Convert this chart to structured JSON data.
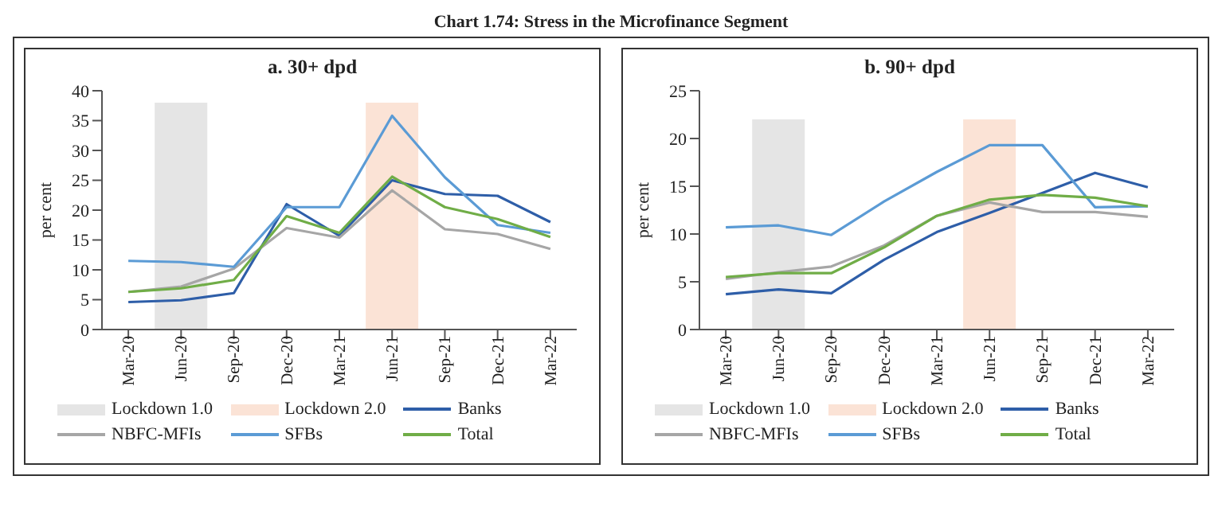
{
  "chart_data": [
    {
      "type": "line",
      "title": "a. 30+ dpd",
      "ylabel": "per cent",
      "annotations": [
        "Chart 1.74: Stress in the Microfinance Segment"
      ],
      "categories": [
        "Mar-20",
        "Jun-20",
        "Sep-20",
        "Dec-20",
        "Mar-21",
        "Jun-21",
        "Sep-21",
        "Dec-21",
        "Mar-22"
      ],
      "ylim": [
        0,
        40
      ],
      "yticks": [
        0,
        5,
        10,
        15,
        20,
        25,
        30,
        35,
        40
      ],
      "legend": "bottom",
      "series": [
        {
          "name": "Lockdown 1.0",
          "type": "bar",
          "color": "#e5e5e5",
          "values": [
            null,
            38,
            null,
            null,
            null,
            null,
            null,
            null,
            null
          ]
        },
        {
          "name": "Lockdown 2.0",
          "type": "bar",
          "color": "#fbe3d6",
          "values": [
            null,
            null,
            null,
            null,
            null,
            38,
            null,
            null,
            null
          ]
        },
        {
          "name": "Banks",
          "color": "#2e5ea8",
          "values": [
            4.6,
            4.9,
            6.1,
            21,
            15.7,
            25,
            22.7,
            22.4,
            18
          ]
        },
        {
          "name": "NBFC-MFIs",
          "color": "#a6a6a6",
          "values": [
            6.3,
            7.2,
            10.2,
            17,
            15.4,
            23.3,
            16.8,
            16,
            13.5
          ]
        },
        {
          "name": "SFBs",
          "color": "#5b9bd5",
          "values": [
            11.5,
            11.3,
            10.5,
            20.5,
            20.5,
            35.8,
            25.5,
            17.5,
            16.2
          ]
        },
        {
          "name": "Total",
          "color": "#70ad47",
          "values": [
            6.3,
            6.9,
            8.3,
            19,
            16.2,
            25.6,
            20.5,
            18.5,
            15.5
          ]
        }
      ]
    },
    {
      "type": "line",
      "title": "b. 90+ dpd",
      "ylabel": "per cent",
      "categories": [
        "Mar-20",
        "Jun-20",
        "Sep-20",
        "Dec-20",
        "Mar-21",
        "Jun-21",
        "Sep-21",
        "Dec-21",
        "Mar-22"
      ],
      "ylim": [
        0,
        25
      ],
      "yticks": [
        0,
        5,
        10,
        15,
        20,
        25
      ],
      "legend": "bottom",
      "series": [
        {
          "name": "Lockdown 1.0",
          "type": "bar",
          "color": "#e5e5e5",
          "values": [
            null,
            22,
            null,
            null,
            null,
            null,
            null,
            null,
            null
          ]
        },
        {
          "name": "Lockdown 2.0",
          "type": "bar",
          "color": "#fbe3d6",
          "values": [
            null,
            null,
            null,
            null,
            null,
            22,
            null,
            null,
            null
          ]
        },
        {
          "name": "Banks",
          "color": "#2e5ea8",
          "values": [
            3.7,
            4.2,
            3.8,
            7.3,
            10.2,
            12.2,
            14.3,
            16.4,
            14.9
          ]
        },
        {
          "name": "NBFC-MFIs",
          "color": "#a6a6a6",
          "values": [
            5.3,
            6,
            6.6,
            8.8,
            11.9,
            13.3,
            12.3,
            12.3,
            11.8
          ]
        },
        {
          "name": "SFBs",
          "color": "#5b9bd5",
          "values": [
            10.7,
            10.9,
            9.9,
            13.4,
            16.5,
            19.3,
            19.3,
            12.8,
            12.9
          ]
        },
        {
          "name": "Total",
          "color": "#70ad47",
          "values": [
            5.5,
            5.9,
            5.9,
            8.6,
            11.9,
            13.6,
            14.1,
            13.8,
            12.9
          ]
        }
      ]
    }
  ]
}
